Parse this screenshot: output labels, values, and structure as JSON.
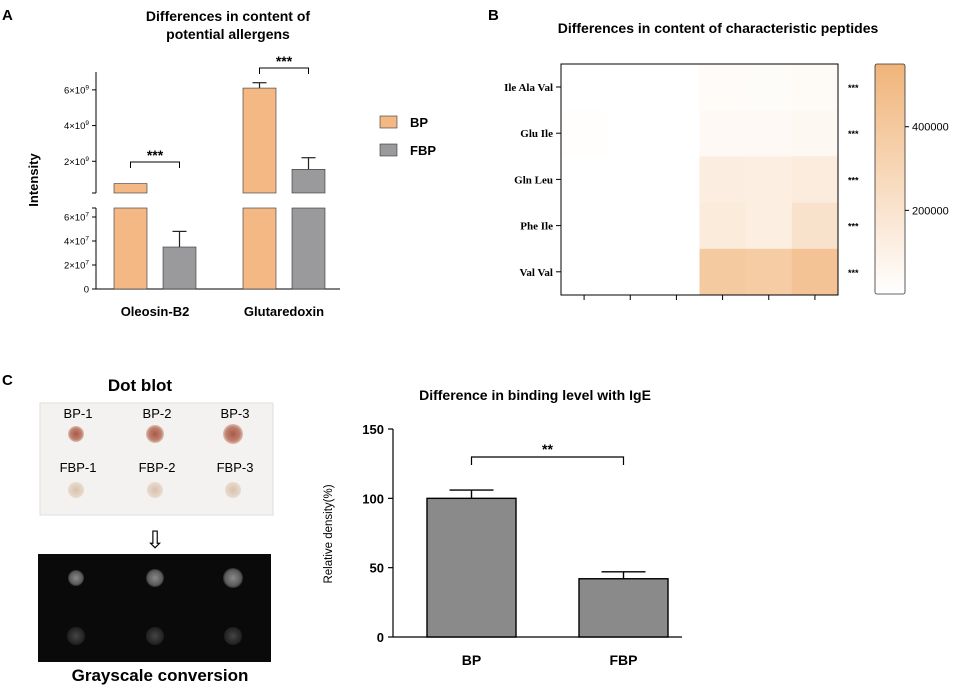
{
  "panel_labels": {
    "a": "A",
    "b": "B",
    "c": "C"
  },
  "chart_data": [
    {
      "panel": "A",
      "type": "bar",
      "title": [
        "Differences in content of",
        "potential allergens"
      ],
      "ylabel": "Intensity",
      "categories": [
        "Oleosin-B2",
        "Glutaredoxin"
      ],
      "series": [
        {
          "name": "BP",
          "color": "#f4b884",
          "values": [
            750000000.0,
            6100000000.0
          ],
          "errors": [
            0,
            300000000.0
          ]
        },
        {
          "name": "FBP",
          "color": "#9a9a9c",
          "values": [
            35000000.0,
            1550000000.0
          ],
          "errors": [
            13000000.0,
            650000000.0
          ]
        }
      ],
      "upper_segment": {
        "ylim": [
          0,
          7000000000.0
        ],
        "ticks": [
          {
            "value": 2000000000.0,
            "base": "2×10",
            "exp": "9"
          },
          {
            "value": 4000000000.0,
            "base": "4×10",
            "exp": "9"
          },
          {
            "value": 6000000000.0,
            "base": "6×10",
            "exp": "9"
          }
        ]
      },
      "lower_segment": {
        "ylim": [
          0,
          70000000.0
        ],
        "ticks": [
          {
            "value": 0,
            "base": "0",
            "exp": ""
          },
          {
            "value": 20000000.0,
            "base": "2×10",
            "exp": "7"
          },
          {
            "value": 40000000.0,
            "base": "4×10",
            "exp": "7"
          },
          {
            "value": 60000000.0,
            "base": "6×10",
            "exp": "7"
          }
        ]
      },
      "significance": [
        {
          "category": "Oleosin-B2",
          "label": "***"
        },
        {
          "category": "Glutaredoxin",
          "label": "***"
        }
      ],
      "legend": [
        {
          "name": "BP",
          "color": "#f4b884"
        },
        {
          "name": "FBP",
          "color": "#9a9a9c"
        }
      ]
    },
    {
      "panel": "B",
      "type": "heatmap",
      "title": "Differences in content of characteristic peptides",
      "rows": [
        "Ile Ala Val",
        "Glu Ile",
        "Gln Leu",
        "Phe Ile",
        "Val Val"
      ],
      "columns": 6,
      "values": [
        [
          0,
          0,
          0,
          30000,
          25000,
          32000
        ],
        [
          8000,
          0,
          0,
          45000,
          42000,
          50000
        ],
        [
          0,
          0,
          0,
          130000,
          120000,
          140000
        ],
        [
          0,
          0,
          0,
          150000,
          125000,
          215000
        ],
        [
          0,
          0,
          0,
          390000,
          375000,
          440000
        ]
      ],
      "row_significance": [
        "***",
        "***",
        "***",
        "***",
        "***"
      ],
      "colorbar": {
        "min": 0,
        "max": 550000,
        "low_color": "#ffffff",
        "high_color": "#f0b47a",
        "ticks": [
          200000,
          400000
        ],
        "tick_labels": [
          "200000",
          "400000"
        ]
      }
    },
    {
      "panel": "C",
      "type": "bar",
      "title": "Difference in binding level with IgE",
      "ylabel": "Relative density(%)",
      "categories": [
        "BP",
        "FBP"
      ],
      "values": [
        100,
        42
      ],
      "errors": [
        6,
        5
      ],
      "ylim": [
        0,
        150
      ],
      "yticks": [
        0,
        50,
        100,
        150
      ],
      "ytick_labels": [
        "0",
        "50",
        "100",
        "150"
      ],
      "bar_color": "#8a8a8a",
      "significance": {
        "label": "**"
      }
    }
  ],
  "dot_blot": {
    "title": "Dot blot",
    "labels_top": [
      "BP-1",
      "BP-2",
      "BP-3"
    ],
    "labels_bottom": [
      "FBP-1",
      "FBP-2",
      "FBP-3"
    ],
    "caption": "Grayscale conversion",
    "arrow": "⇩"
  }
}
